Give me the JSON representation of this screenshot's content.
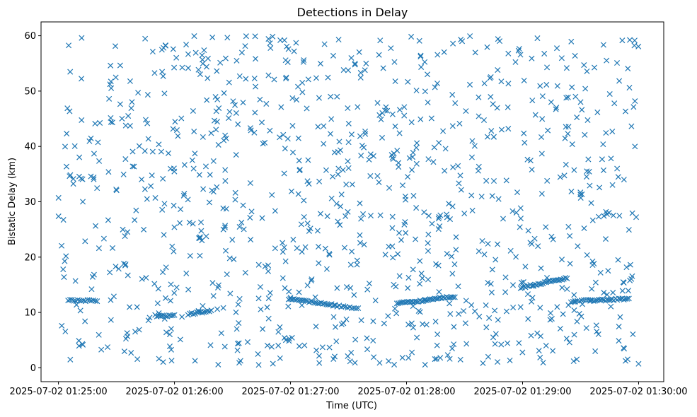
{
  "chart_data": {
    "type": "scatter",
    "title": "Detections in Delay",
    "xlabel": "Time (UTC)",
    "ylabel": "Bistatic Delay (km)",
    "x_unit": "time",
    "xlim": [
      "2025-07-02 01:24:51",
      "2025-07-02 01:30:13"
    ],
    "ylim": [
      -2.5,
      62.5
    ],
    "xticks": [
      "2025-07-02 01:25:00",
      "2025-07-02 01:26:00",
      "2025-07-02 01:27:00",
      "2025-07-02 01:28:00",
      "2025-07-02 01:29:00",
      "2025-07-02 01:30:00"
    ],
    "yticks": [
      0,
      10,
      20,
      30,
      40,
      50,
      60
    ],
    "grid": false,
    "marker": "x",
    "color": "#1f77b4",
    "series": [
      {
        "label_note": "",
        "tracks": [
          {
            "start": "2025-07-02 01:25:05",
            "end": "2025-07-02 01:25:20",
            "y_start": 12.2,
            "y_end": 12.1,
            "points": 16
          },
          {
            "start": "2025-07-02 01:25:50",
            "end": "2025-07-02 01:26:00",
            "y_start": 9.4,
            "y_end": 9.4,
            "points": 12
          },
          {
            "start": "2025-07-02 01:26:07",
            "end": "2025-07-02 01:26:19",
            "y_start": 9.7,
            "y_end": 10.3,
            "points": 14
          },
          {
            "start": "2025-07-02 01:26:59",
            "end": "2025-07-02 01:27:23",
            "y_start": 12.5,
            "y_end": 11.3,
            "points": 28
          },
          {
            "start": "2025-07-02 01:27:23",
            "end": "2025-07-02 01:27:35",
            "y_start": 11.2,
            "y_end": 10.8,
            "points": 12
          },
          {
            "start": "2025-07-02 01:27:55",
            "end": "2025-07-02 01:28:25",
            "y_start": 11.6,
            "y_end": 12.9,
            "points": 36
          },
          {
            "start": "2025-07-02 01:28:59",
            "end": "2025-07-02 01:29:23",
            "y_start": 14.5,
            "y_end": 16.2,
            "points": 30
          },
          {
            "start": "2025-07-02 01:29:25",
            "end": "2025-07-02 01:29:35",
            "y_start": 12.0,
            "y_end": 12.3,
            "points": 10
          },
          {
            "start": "2025-07-02 01:29:35",
            "end": "2025-07-02 01:29:55",
            "y_start": 12.1,
            "y_end": 12.5,
            "points": 24
          }
        ],
        "scatter_noise": {
          "x_range": [
            "2025-07-02 01:25:00",
            "2025-07-02 01:30:00"
          ],
          "y_range": [
            0.5,
            60
          ],
          "approx_points": 1000
        }
      }
    ]
  }
}
